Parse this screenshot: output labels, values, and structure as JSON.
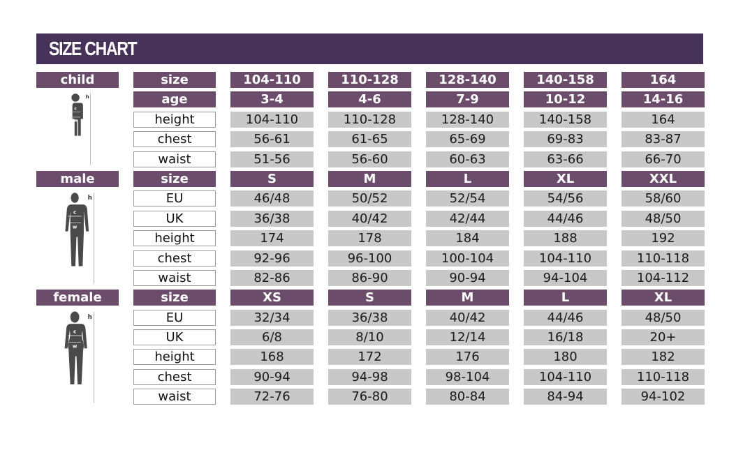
{
  "title": "SIZE CHART",
  "figure_labels": {
    "height": "h",
    "chest": "c",
    "waist": "w"
  },
  "colors": {
    "title_bar": "#47325a",
    "header_cell": "#6b4d6b",
    "value_cell": "#c8c8c8",
    "figure": "#4a4a4a"
  },
  "groups": [
    {
      "name": "child",
      "icon": "child-silhouette-icon",
      "header": {
        "label": "size",
        "values": [
          "104-110",
          "110-128",
          "128-140",
          "140-158",
          "164"
        ]
      },
      "header_rows": [
        {
          "label": "age",
          "values": [
            "3-4",
            "4-6",
            "7-9",
            "10-12",
            "14-16"
          ]
        }
      ],
      "rows": [
        {
          "label": "height",
          "values": [
            "104-110",
            "110-128",
            "128-140",
            "140-158",
            "164"
          ]
        },
        {
          "label": "chest",
          "values": [
            "56-61",
            "61-65",
            "65-69",
            "69-83",
            "83-87"
          ]
        },
        {
          "label": "waist",
          "values": [
            "51-56",
            "56-60",
            "60-63",
            "63-66",
            "66-70"
          ]
        }
      ]
    },
    {
      "name": "male",
      "icon": "male-silhouette-icon",
      "header": {
        "label": "size",
        "values": [
          "S",
          "M",
          "L",
          "XL",
          "XXL"
        ]
      },
      "header_rows": [],
      "rows": [
        {
          "label": "EU",
          "values": [
            "46/48",
            "50/52",
            "52/54",
            "54/56",
            "58/60"
          ]
        },
        {
          "label": "UK",
          "values": [
            "36/38",
            "40/42",
            "42/44",
            "44/46",
            "48/50"
          ]
        },
        {
          "label": "height",
          "values": [
            "174",
            "178",
            "184",
            "188",
            "192"
          ]
        },
        {
          "label": "chest",
          "values": [
            "92-96",
            "96-100",
            "100-104",
            "104-110",
            "110-118"
          ]
        },
        {
          "label": "waist",
          "values": [
            "82-86",
            "86-90",
            "90-94",
            "94-104",
            "104-112"
          ]
        }
      ]
    },
    {
      "name": "female",
      "icon": "female-silhouette-icon",
      "header": {
        "label": "size",
        "values": [
          "XS",
          "S",
          "M",
          "L",
          "XL"
        ]
      },
      "header_rows": [],
      "rows": [
        {
          "label": "EU",
          "values": [
            "32/34",
            "36/38",
            "40/42",
            "44/46",
            "48/50"
          ]
        },
        {
          "label": "UK",
          "values": [
            "6/8",
            "8/10",
            "12/14",
            "16/18",
            "20+"
          ]
        },
        {
          "label": "height",
          "values": [
            "168",
            "172",
            "176",
            "180",
            "182"
          ]
        },
        {
          "label": "chest",
          "values": [
            "90-94",
            "94-98",
            "98-104",
            "104-110",
            "110-118"
          ]
        },
        {
          "label": "waist",
          "values": [
            "72-76",
            "76-80",
            "80-84",
            "84-94",
            "94-102"
          ]
        }
      ]
    }
  ]
}
